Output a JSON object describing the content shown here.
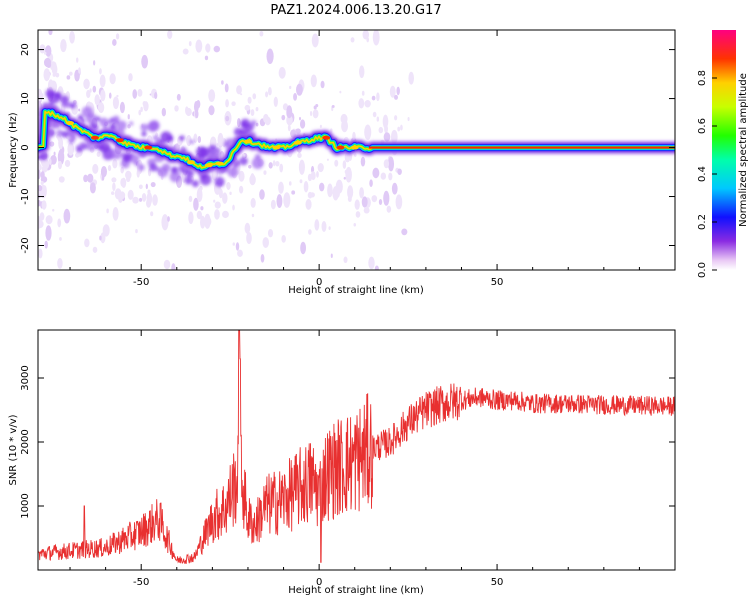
{
  "title": "PAZ1.2024.006.13.20.G17",
  "colors": {
    "snr_line": "#e83030",
    "axis": "#000000",
    "background": "#ffffff"
  },
  "chart_data": [
    {
      "type": "heatmap",
      "xlabel": "Height of straight line (km)",
      "ylabel": "Frequency (Hz)",
      "xlim": [
        -79,
        100
      ],
      "ylim": [
        -25,
        24
      ],
      "xticks": [
        -50,
        0,
        50
      ],
      "yticks": [
        -20,
        -10,
        0,
        10,
        20
      ],
      "colormap": "rainbow",
      "colorbar": {
        "label": "Normalized spectral amplitude",
        "range": [
          0,
          1
        ],
        "ticks": [
          0.0,
          0.2,
          0.4,
          0.6,
          0.8
        ]
      },
      "ridge": [
        {
          "x": -77,
          "y": 7.5
        },
        {
          "x": -72,
          "y": 6
        },
        {
          "x": -68,
          "y": 4
        },
        {
          "x": -63,
          "y": 2
        },
        {
          "x": -58,
          "y": 2.5
        },
        {
          "x": -55,
          "y": 1
        },
        {
          "x": -50,
          "y": 0
        },
        {
          "x": -46,
          "y": 0
        },
        {
          "x": -42,
          "y": -1.5
        },
        {
          "x": -38,
          "y": -2
        },
        {
          "x": -34,
          "y": -4
        },
        {
          "x": -30,
          "y": -3.5
        },
        {
          "x": -26,
          "y": -3
        },
        {
          "x": -22,
          "y": 1.5
        },
        {
          "x": -18,
          "y": 1
        },
        {
          "x": -14,
          "y": 0
        },
        {
          "x": -10,
          "y": 0
        },
        {
          "x": -6,
          "y": 1
        },
        {
          "x": -3,
          "y": 1.5
        },
        {
          "x": 0,
          "y": 2
        },
        {
          "x": 2,
          "y": 2
        },
        {
          "x": 5,
          "y": 0
        },
        {
          "x": 10,
          "y": 0
        },
        {
          "x": 14,
          "y": 0
        },
        {
          "x": 100,
          "y": 0
        }
      ]
    },
    {
      "type": "line",
      "xlabel": "Height of straight line (km)",
      "ylabel": "SNR (10 * v/v)",
      "xlim": [
        -79,
        100
      ],
      "ylim": [
        0,
        3750
      ],
      "xticks": [
        -50,
        0,
        50
      ],
      "yticks": [
        1000,
        2000,
        3000
      ],
      "series": [
        {
          "x": [
            -79,
            -70,
            -60,
            -50,
            -45,
            -40,
            -35,
            -30,
            -28,
            -26,
            -24,
            -22,
            -20,
            -18,
            -15,
            -10,
            -5,
            -2,
            0,
            2,
            5,
            10,
            15,
            20,
            25,
            30,
            35,
            40,
            45,
            50,
            55,
            60,
            70,
            80,
            90,
            100
          ],
          "y": [
            250,
            300,
            350,
            600,
            800,
            150,
            200,
            800,
            900,
            1000,
            1300,
            1500,
            800,
            700,
            1000,
            1100,
            1300,
            1400,
            1200,
            1500,
            1600,
            1700,
            1900,
            2000,
            2300,
            2500,
            2600,
            2650,
            2700,
            2650,
            2650,
            2600,
            2600,
            2580,
            2570,
            2560
          ]
        }
      ]
    }
  ]
}
